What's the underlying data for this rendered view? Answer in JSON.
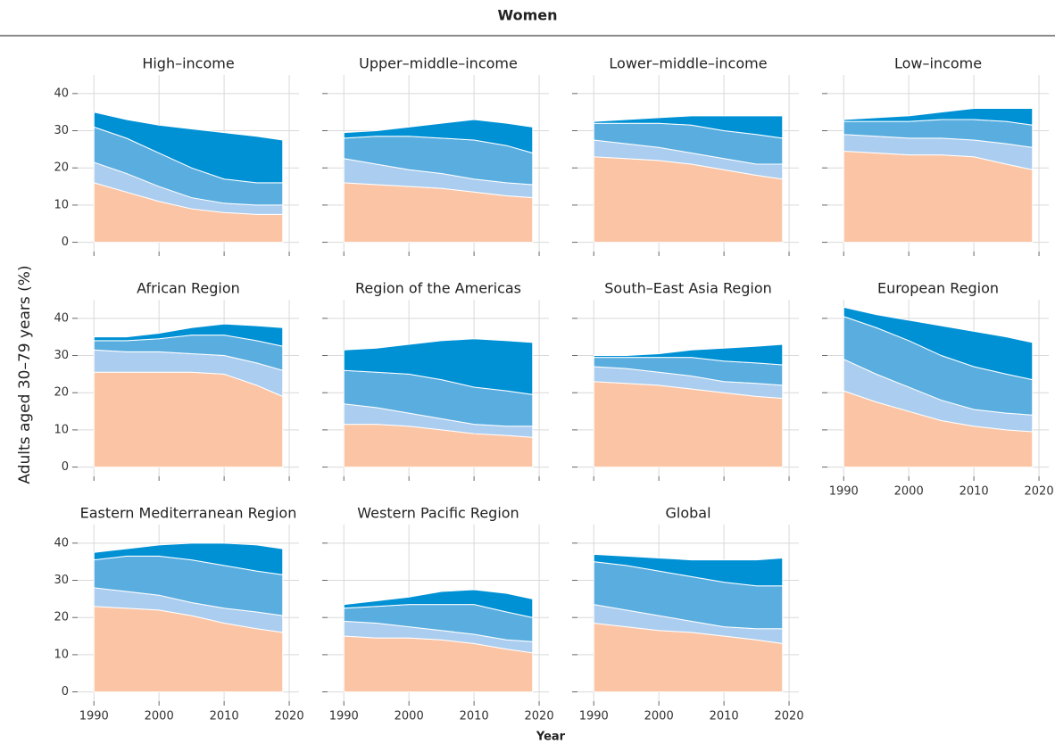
{
  "title": "Women",
  "y_label": "Adults aged 30–79 years (%)",
  "x_label": "Year",
  "chart_data": [
    {
      "type": "area",
      "title": "High–income",
      "x": [
        1990,
        1995,
        2000,
        2005,
        2010,
        2015,
        2019
      ],
      "xlim": [
        1987.5,
        2021.5
      ],
      "ylim": [
        -2.5,
        45
      ],
      "xticks": [
        1990,
        2000,
        2010,
        2020
      ],
      "yticks": [
        0,
        10,
        20,
        30,
        40
      ],
      "grid": true,
      "series": [
        {
          "color": "#fbc5a5",
          "values": [
            16,
            13.5,
            11,
            9,
            8,
            7.5,
            7.5
          ]
        },
        {
          "color": "#abcdef",
          "values": [
            5.5,
            5,
            4,
            3,
            2.5,
            2.5,
            2.5
          ]
        },
        {
          "color": "#5aaddf",
          "values": [
            9.5,
            9.5,
            9,
            8,
            6.5,
            6,
            6
          ]
        },
        {
          "color": "#0090d4",
          "values": [
            4,
            5,
            7.5,
            10.5,
            12.5,
            12.5,
            11.5
          ]
        }
      ]
    },
    {
      "type": "area",
      "title": "Upper–middle–income",
      "x": [
        1990,
        1995,
        2000,
        2005,
        2010,
        2015,
        2019
      ],
      "xlim": [
        1987.5,
        2021.5
      ],
      "ylim": [
        -2.5,
        45
      ],
      "xticks": [
        1990,
        2000,
        2010,
        2020
      ],
      "yticks": [
        0,
        10,
        20,
        30,
        40
      ],
      "grid": true,
      "series": [
        {
          "color": "#fbc5a5",
          "values": [
            16,
            15.5,
            15,
            14.5,
            13.5,
            12.5,
            12
          ]
        },
        {
          "color": "#abcdef",
          "values": [
            6.5,
            5.5,
            4.5,
            4,
            3.5,
            3.5,
            3.5
          ]
        },
        {
          "color": "#5aaddf",
          "values": [
            5.5,
            7.5,
            9,
            9.5,
            10.5,
            10,
            8.5
          ]
        },
        {
          "color": "#0090d4",
          "values": [
            1.5,
            1.5,
            2.5,
            4,
            5.5,
            6,
            7
          ]
        }
      ]
    },
    {
      "type": "area",
      "title": "Lower–middle–income",
      "x": [
        1990,
        1995,
        2000,
        2005,
        2010,
        2015,
        2019
      ],
      "xlim": [
        1987.5,
        2021.5
      ],
      "ylim": [
        -2.5,
        45
      ],
      "xticks": [
        1990,
        2000,
        2010,
        2020
      ],
      "yticks": [
        0,
        10,
        20,
        30,
        40
      ],
      "grid": true,
      "series": [
        {
          "color": "#fbc5a5",
          "values": [
            23,
            22.5,
            22,
            21,
            19.5,
            18,
            17
          ]
        },
        {
          "color": "#abcdef",
          "values": [
            4.5,
            4,
            3.5,
            3,
            3,
            3,
            4
          ]
        },
        {
          "color": "#5aaddf",
          "values": [
            4.5,
            5.5,
            6.5,
            7.5,
            7.5,
            8,
            7
          ]
        },
        {
          "color": "#0090d4",
          "values": [
            0.5,
            1,
            1.5,
            2.5,
            4,
            5,
            6
          ]
        }
      ]
    },
    {
      "type": "area",
      "title": "Low–income",
      "x": [
        1990,
        1995,
        2000,
        2005,
        2010,
        2015,
        2019
      ],
      "xlim": [
        1987.5,
        2021.5
      ],
      "ylim": [
        -2.5,
        45
      ],
      "xticks": [
        1990,
        2000,
        2010,
        2020
      ],
      "yticks": [
        0,
        10,
        20,
        30,
        40
      ],
      "grid": true,
      "series": [
        {
          "color": "#fbc5a5",
          "values": [
            24.5,
            24,
            23.5,
            23.5,
            23,
            21,
            19.5
          ]
        },
        {
          "color": "#abcdef",
          "values": [
            4.5,
            4.5,
            4.5,
            4.5,
            4.5,
            5.5,
            6
          ]
        },
        {
          "color": "#5aaddf",
          "values": [
            3.5,
            4,
            4.5,
            5,
            5.5,
            6,
            6
          ]
        },
        {
          "color": "#0090d4",
          "values": [
            0.5,
            1,
            1.5,
            2,
            3,
            3.5,
            4.5
          ]
        }
      ]
    },
    {
      "type": "area",
      "title": "African Region",
      "x": [
        1990,
        1995,
        2000,
        2005,
        2010,
        2015,
        2019
      ],
      "xlim": [
        1987.5,
        2021.5
      ],
      "ylim": [
        -2.5,
        45
      ],
      "xticks": [
        1990,
        2000,
        2010,
        2020
      ],
      "yticks": [
        0,
        10,
        20,
        30,
        40
      ],
      "grid": true,
      "series": [
        {
          "color": "#fbc5a5",
          "values": [
            25.5,
            25.5,
            25.5,
            25.5,
            25,
            22,
            19
          ]
        },
        {
          "color": "#abcdef",
          "values": [
            6,
            5.5,
            5.5,
            5,
            5,
            6,
            7
          ]
        },
        {
          "color": "#5aaddf",
          "values": [
            2.5,
            3,
            3.5,
            5,
            5.5,
            6,
            6.5
          ]
        },
        {
          "color": "#0090d4",
          "values": [
            1,
            1,
            1.5,
            2,
            3,
            4,
            5
          ]
        }
      ]
    },
    {
      "type": "area",
      "title": "Region of the Americas",
      "x": [
        1990,
        1995,
        2000,
        2005,
        2010,
        2015,
        2019
      ],
      "xlim": [
        1987.5,
        2021.5
      ],
      "ylim": [
        -2.5,
        45
      ],
      "xticks": [
        1990,
        2000,
        2010,
        2020
      ],
      "yticks": [
        0,
        10,
        20,
        30,
        40
      ],
      "grid": true,
      "series": [
        {
          "color": "#fbc5a5",
          "values": [
            11.5,
            11.5,
            11,
            10,
            9,
            8.5,
            8
          ]
        },
        {
          "color": "#abcdef",
          "values": [
            5.5,
            4.5,
            3.5,
            3,
            2.5,
            2.5,
            3
          ]
        },
        {
          "color": "#5aaddf",
          "values": [
            9,
            9.5,
            10.5,
            10.5,
            10,
            9.5,
            8.5
          ]
        },
        {
          "color": "#0090d4",
          "values": [
            5.5,
            6.5,
            8,
            10.5,
            13,
            13.5,
            14
          ]
        }
      ]
    },
    {
      "type": "area",
      "title": "South–East Asia Region",
      "x": [
        1990,
        1995,
        2000,
        2005,
        2010,
        2015,
        2019
      ],
      "xlim": [
        1987.5,
        2021.5
      ],
      "ylim": [
        -2.5,
        45
      ],
      "xticks": [
        1990,
        2000,
        2010,
        2020
      ],
      "yticks": [
        0,
        10,
        20,
        30,
        40
      ],
      "grid": true,
      "series": [
        {
          "color": "#fbc5a5",
          "values": [
            23,
            22.5,
            22,
            21,
            20,
            19,
            18.5
          ]
        },
        {
          "color": "#abcdef",
          "values": [
            4,
            4,
            3.5,
            3.5,
            3,
            3.5,
            3.5
          ]
        },
        {
          "color": "#5aaddf",
          "values": [
            2.5,
            3,
            4,
            5,
            5.5,
            5.5,
            5.5
          ]
        },
        {
          "color": "#0090d4",
          "values": [
            0.5,
            0.5,
            1,
            2,
            3.5,
            4.5,
            5.5
          ]
        }
      ]
    },
    {
      "type": "area",
      "title": "European Region",
      "x": [
        1990,
        1995,
        2000,
        2005,
        2010,
        2015,
        2019
      ],
      "xlim": [
        1987.5,
        2021.5
      ],
      "ylim": [
        -2.5,
        45
      ],
      "xticks": [
        1990,
        2000,
        2010,
        2020
      ],
      "yticks": [
        0,
        10,
        20,
        30,
        40
      ],
      "grid": true,
      "series": [
        {
          "color": "#fbc5a5",
          "values": [
            20.5,
            17.5,
            15,
            12.5,
            11,
            10,
            9.5
          ]
        },
        {
          "color": "#abcdef",
          "values": [
            8.5,
            7.5,
            6.5,
            5.5,
            4.5,
            4.5,
            4.5
          ]
        },
        {
          "color": "#5aaddf",
          "values": [
            11.5,
            12.5,
            12.5,
            12,
            11.5,
            10.5,
            9.5
          ]
        },
        {
          "color": "#0090d4",
          "values": [
            2.5,
            3.5,
            5.5,
            8,
            9.5,
            10,
            10
          ]
        }
      ]
    },
    {
      "type": "area",
      "title": "Eastern Mediterranean Region",
      "x": [
        1990,
        1995,
        2000,
        2005,
        2010,
        2015,
        2019
      ],
      "xlim": [
        1987.5,
        2021.5
      ],
      "ylim": [
        -2.5,
        45
      ],
      "xticks": [
        1990,
        2000,
        2010,
        2020
      ],
      "yticks": [
        0,
        10,
        20,
        30,
        40
      ],
      "grid": true,
      "series": [
        {
          "color": "#fbc5a5",
          "values": [
            23,
            22.5,
            22,
            20.5,
            18.5,
            17,
            16
          ]
        },
        {
          "color": "#abcdef",
          "values": [
            5,
            4.5,
            4,
            3.5,
            4,
            4.5,
            4.5
          ]
        },
        {
          "color": "#5aaddf",
          "values": [
            7.5,
            9.5,
            10.5,
            11.5,
            11.5,
            11,
            11
          ]
        },
        {
          "color": "#0090d4",
          "values": [
            2,
            2,
            3,
            4.5,
            6,
            7,
            7
          ]
        }
      ]
    },
    {
      "type": "area",
      "title": "Western Pacific Region",
      "x": [
        1990,
        1995,
        2000,
        2005,
        2010,
        2015,
        2019
      ],
      "xlim": [
        1987.5,
        2021.5
      ],
      "ylim": [
        -2.5,
        45
      ],
      "xticks": [
        1990,
        2000,
        2010,
        2020
      ],
      "yticks": [
        0,
        10,
        20,
        30,
        40
      ],
      "grid": true,
      "series": [
        {
          "color": "#fbc5a5",
          "values": [
            15,
            14.5,
            14.5,
            14,
            13,
            11.5,
            10.5
          ]
        },
        {
          "color": "#abcdef",
          "values": [
            4,
            4,
            3,
            2.5,
            2.5,
            2.5,
            3
          ]
        },
        {
          "color": "#5aaddf",
          "values": [
            3.5,
            4.5,
            6,
            7,
            8,
            7.5,
            6.5
          ]
        },
        {
          "color": "#0090d4",
          "values": [
            1,
            1.5,
            2,
            3.5,
            4,
            5,
            5
          ]
        }
      ]
    },
    {
      "type": "area",
      "title": "Global",
      "x": [
        1990,
        1995,
        2000,
        2005,
        2010,
        2015,
        2019
      ],
      "xlim": [
        1987.5,
        2021.5
      ],
      "ylim": [
        -2.5,
        45
      ],
      "xticks": [
        1990,
        2000,
        2010,
        2020
      ],
      "yticks": [
        0,
        10,
        20,
        30,
        40
      ],
      "grid": true,
      "series": [
        {
          "color": "#fbc5a5",
          "values": [
            18.5,
            17.5,
            16.5,
            16,
            15,
            14,
            13
          ]
        },
        {
          "color": "#abcdef",
          "values": [
            5,
            4.5,
            4,
            3,
            2.5,
            3,
            4
          ]
        },
        {
          "color": "#5aaddf",
          "values": [
            11.5,
            12,
            12,
            12,
            12,
            11.5,
            11.5
          ]
        },
        {
          "color": "#0090d4",
          "values": [
            2,
            2.5,
            3.5,
            4.5,
            6,
            7,
            7.5
          ]
        }
      ]
    }
  ]
}
